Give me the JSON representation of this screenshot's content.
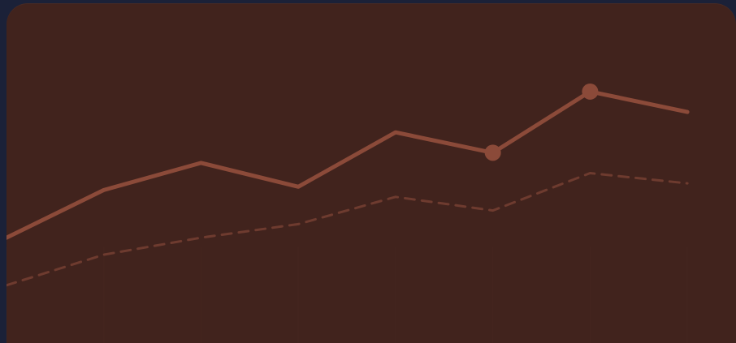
{
  "colors": {
    "page_background": "#1b2138",
    "card_background": "#41231d",
    "primary_line": "#8b4a39",
    "secondary_line": "#6e3b2f",
    "grid_line": "#4a2a22"
  },
  "chart_data": {
    "type": "line",
    "title": "",
    "xlabel": "",
    "ylabel": "",
    "x": [
      0,
      1,
      2,
      3,
      4,
      5,
      6,
      7
    ],
    "ylim": [
      0,
      100
    ],
    "xlim": [
      0,
      7.5
    ],
    "grid": false,
    "legend": "none",
    "series": [
      {
        "style": "solid",
        "values": [
          31,
          45,
          53,
          46,
          62,
          56,
          74,
          68
        ],
        "markers": [
          5,
          6
        ]
      },
      {
        "style": "dashed",
        "values": [
          17,
          26,
          31,
          35,
          43,
          39,
          50,
          47
        ],
        "markers": []
      }
    ]
  }
}
